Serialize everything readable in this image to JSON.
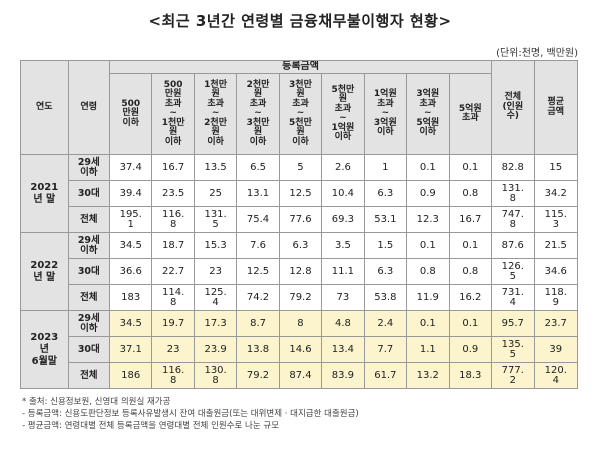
{
  "title": "<최근 3년간 연령별 금융채무불이행자 현황>",
  "unit": "(단위:천명, 백만원)",
  "headers": {
    "year": "연도",
    "age": "연령",
    "group": "등록금액",
    "amounts": [
      "500\n만원\n이하",
      "500\n만원\n초과\n~\n1천만\n원\n이하",
      "1천만\n원\n초과\n~\n2천만\n원\n이하",
      "2천만\n원\n초과\n~\n3천만\n원\n이하",
      "3천만\n원\n초과\n~\n5천만\n원\n이하",
      "5천만\n원\n초과\n~\n1억원\n이하",
      "1억원\n초과\n~\n3억원\n이하",
      "3억원\n초과\n~\n5억원\n이하",
      "5억원\n초과"
    ],
    "total": "전체\n(인원\n수)",
    "avg": "평균\n금액"
  },
  "years": [
    {
      "label": "2021\n년 말",
      "rows": [
        {
          "age": "29세\n이하",
          "values": [
            "37.4",
            "16.7",
            "13.5",
            "6.5",
            "5",
            "2.6",
            "1",
            "0.1",
            "0.1",
            "82.8",
            "15"
          ]
        },
        {
          "age": "30대",
          "values": [
            "39.4",
            "23.5",
            "25",
            "13.1",
            "12.5",
            "10.4",
            "6.3",
            "0.9",
            "0.8",
            "131.\n8",
            "34.2"
          ]
        },
        {
          "age": "전체",
          "values": [
            "195.\n1",
            "116.\n8",
            "131.\n5",
            "75.4",
            "77.6",
            "69.3",
            "53.1",
            "12.3",
            "16.7",
            "747.\n8",
            "115.\n3"
          ]
        }
      ]
    },
    {
      "label": "2022\n년 말",
      "rows": [
        {
          "age": "29세\n이하",
          "values": [
            "34.5",
            "18.7",
            "15.3",
            "7.6",
            "6.3",
            "3.5",
            "1.5",
            "0.1",
            "0.1",
            "87.6",
            "21.5"
          ]
        },
        {
          "age": "30대",
          "values": [
            "36.6",
            "22.7",
            "23",
            "12.5",
            "12.8",
            "11.1",
            "6.3",
            "0.8",
            "0.8",
            "126.\n5",
            "34.6"
          ]
        },
        {
          "age": "전체",
          "values": [
            "183",
            "114.\n8",
            "125.\n4",
            "74.2",
            "79.2",
            "73",
            "53.8",
            "11.9",
            "16.2",
            "731.\n4",
            "118.\n9"
          ]
        }
      ]
    },
    {
      "label": "2023\n년\n6월말",
      "highlight": true,
      "rows": [
        {
          "age": "29세\n이하",
          "values": [
            "34.5",
            "19.7",
            "17.3",
            "8.7",
            "8",
            "4.8",
            "2.4",
            "0.1",
            "0.1",
            "95.7",
            "23.7"
          ]
        },
        {
          "age": "30대",
          "values": [
            "37.1",
            "23",
            "23.9",
            "13.8",
            "14.6",
            "13.4",
            "7.7",
            "1.1",
            "0.9",
            "135.\n5",
            "39"
          ]
        },
        {
          "age": "전체",
          "values": [
            "186",
            "116.\n8",
            "130.\n8",
            "79.2",
            "87.4",
            "83.9",
            "61.7",
            "13.2",
            "18.3",
            "777.\n2",
            "120.\n4"
          ]
        }
      ]
    }
  ],
  "notes": [
    "* 출처: 신용정보원, 신영대 의원실 재가공",
    "- 등록금액: 신용도판단정보 등록사유발생시 잔여 대출원금(또는 대위변제 · 대지급한 대출원금)",
    "- 평균금액: 연령대별 전체 등록금액을 연령대별 전체 인원수로 나눈 규모"
  ]
}
